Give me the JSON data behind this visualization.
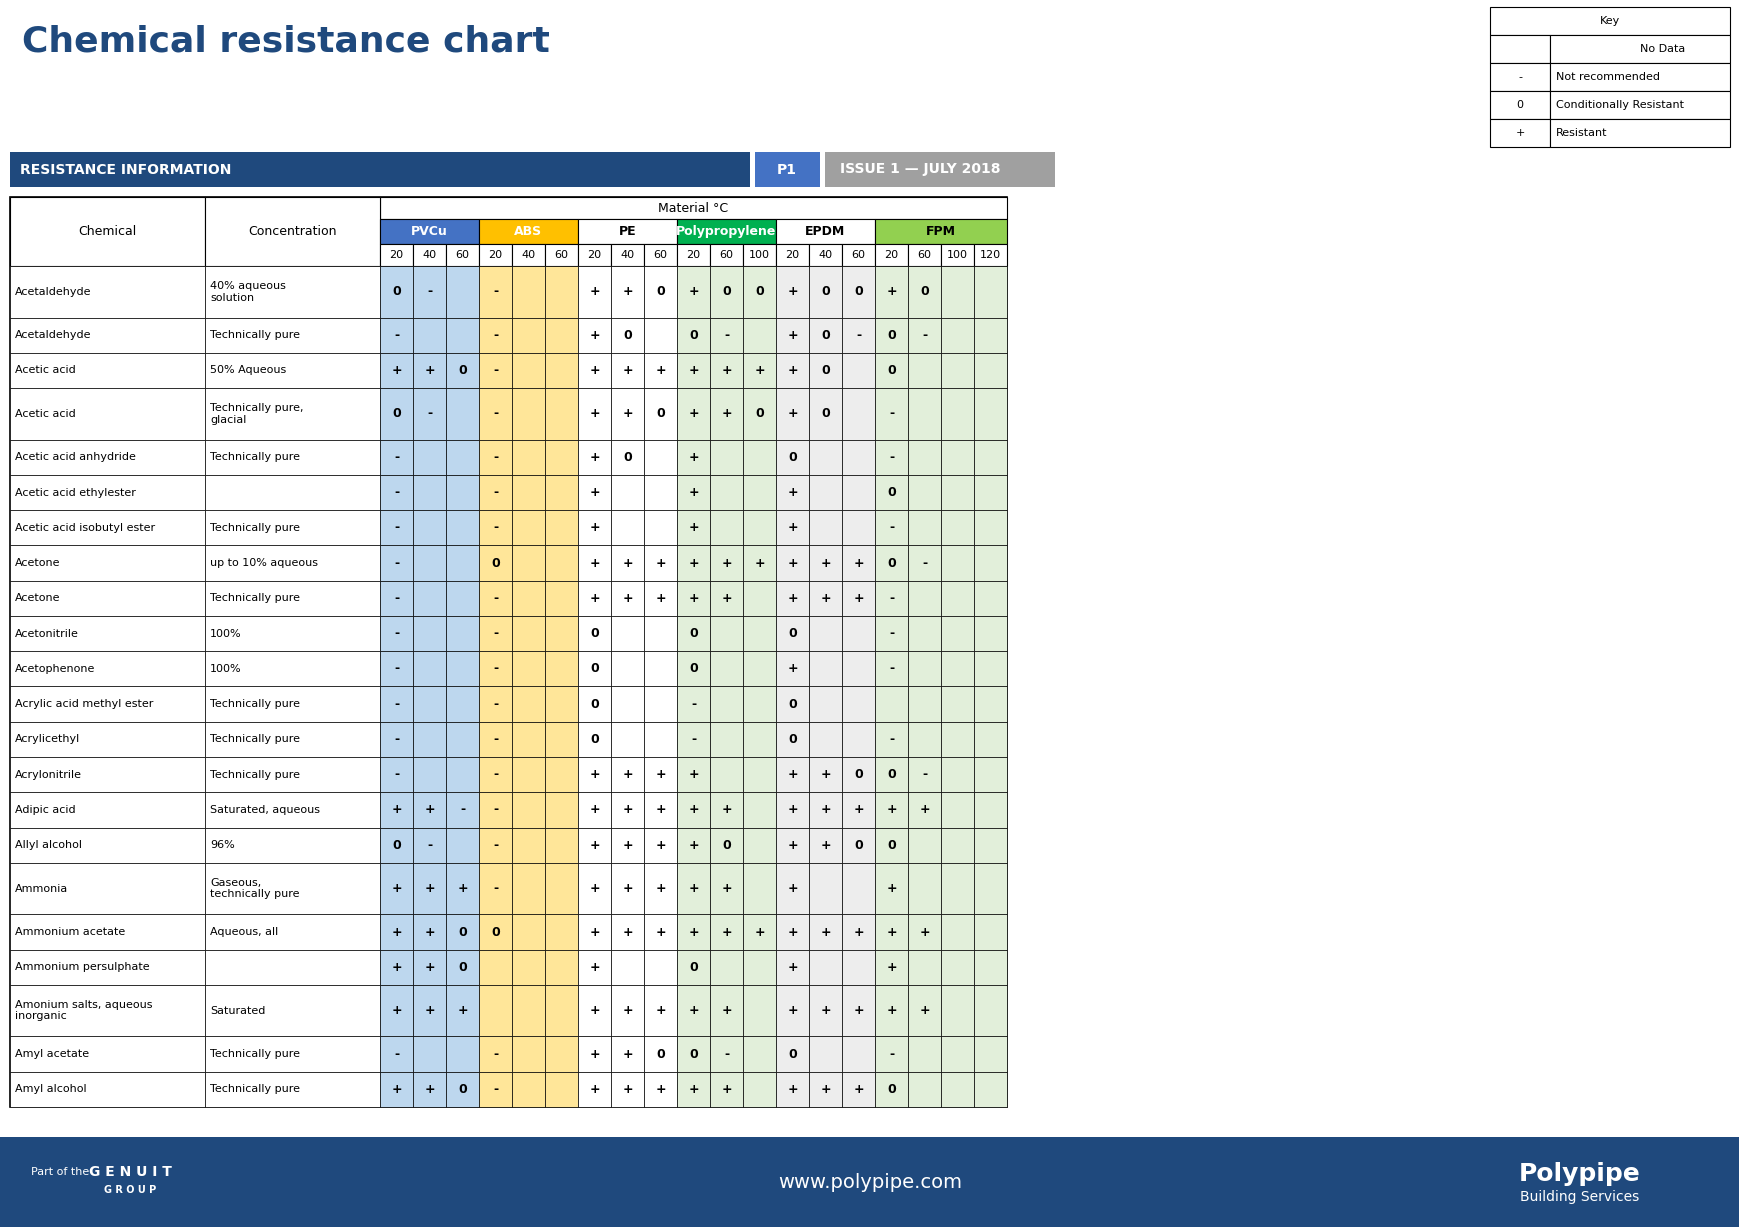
{
  "title": "Chemical resistance chart",
  "header_bar_text": "RESISTANCE INFORMATION",
  "header_p1": "P1",
  "header_issue": "ISSUE 1 — JULY 2018",
  "material_header": "Material °C",
  "materials": [
    "PVCu",
    "ABS",
    "PE",
    "Polypropylene",
    "EPDM",
    "FPM"
  ],
  "material_colors": [
    "#4472C4",
    "#FFC000",
    "#FFFFFF",
    "#00B050",
    "#FFFFFF",
    "#92D050"
  ],
  "material_text_colors": [
    "#FFFFFF",
    "#FFFFFF",
    "#000000",
    "#FFFFFF",
    "#000000",
    "#000000"
  ],
  "sub_cols": {
    "PVCu": [
      "20",
      "40",
      "60"
    ],
    "ABS": [
      "20",
      "40",
      "60"
    ],
    "PE": [
      "20",
      "40",
      "60"
    ],
    "Polypropylene": [
      "20",
      "60",
      "100"
    ],
    "EPDM": [
      "20",
      "40",
      "60"
    ],
    "FPM": [
      "20",
      "60",
      "100",
      "120"
    ]
  },
  "col_bg_colors": {
    "PVCu": "#BDD7EE",
    "ABS": "#FFE699",
    "PE": "#FFFFFF",
    "Polypropylene": "#E2EFDA",
    "EPDM": "#EDEDED",
    "FPM": "#E2EFDA"
  },
  "key": {
    "title": "Key",
    "rows": [
      [
        "",
        "No Data"
      ],
      [
        "-",
        "Not recommended"
      ],
      [
        "0",
        "Conditionally Resistant"
      ],
      [
        "+",
        "Resistant"
      ]
    ]
  },
  "chemicals": [
    {
      "name": "Acetaldehyde",
      "concentration": "40% aqueous\nsolution",
      "data": {
        "PVCu": [
          "0",
          "-",
          ""
        ],
        "ABS": [
          "-",
          "",
          ""
        ],
        "PE": [
          "+",
          "+",
          "0"
        ],
        "Polypropylene": [
          "+",
          "0",
          "0"
        ],
        "EPDM": [
          "+",
          "0",
          "0"
        ],
        "FPM": [
          "+",
          "0",
          "",
          ""
        ]
      }
    },
    {
      "name": "Acetaldehyde",
      "concentration": "Technically pure",
      "data": {
        "PVCu": [
          "-",
          "",
          ""
        ],
        "ABS": [
          "-",
          "",
          ""
        ],
        "PE": [
          "+",
          "0",
          ""
        ],
        "Polypropylene": [
          "0",
          "-",
          ""
        ],
        "EPDM": [
          "+",
          "0",
          "-"
        ],
        "FPM": [
          "0",
          "-",
          "",
          ""
        ]
      }
    },
    {
      "name": "Acetic acid",
      "concentration": "50% Aqueous",
      "data": {
        "PVCu": [
          "+",
          "+",
          "0"
        ],
        "ABS": [
          "-",
          "",
          ""
        ],
        "PE": [
          "+",
          "+",
          "+"
        ],
        "Polypropylene": [
          "+",
          "+",
          "+"
        ],
        "EPDM": [
          "+",
          "0",
          ""
        ],
        "FPM": [
          "0",
          "",
          "",
          ""
        ]
      }
    },
    {
      "name": "Acetic acid",
      "concentration": "Technically pure,\nglacial",
      "data": {
        "PVCu": [
          "0",
          "-",
          ""
        ],
        "ABS": [
          "-",
          "",
          ""
        ],
        "PE": [
          "+",
          "+",
          "0"
        ],
        "Polypropylene": [
          "+",
          "+",
          "0"
        ],
        "EPDM": [
          "+",
          "0",
          ""
        ],
        "FPM": [
          "-",
          "",
          "",
          ""
        ]
      }
    },
    {
      "name": "Acetic acid anhydride",
      "concentration": "Technically pure",
      "data": {
        "PVCu": [
          "-",
          "",
          ""
        ],
        "ABS": [
          "-",
          "",
          ""
        ],
        "PE": [
          "+",
          "0",
          ""
        ],
        "Polypropylene": [
          "+",
          "",
          ""
        ],
        "EPDM": [
          "0",
          "",
          ""
        ],
        "FPM": [
          "-",
          "",
          "",
          ""
        ]
      }
    },
    {
      "name": "Acetic acid ethylester",
      "concentration": "",
      "data": {
        "PVCu": [
          "-",
          "",
          ""
        ],
        "ABS": [
          "-",
          "",
          ""
        ],
        "PE": [
          "+",
          "",
          ""
        ],
        "Polypropylene": [
          "+",
          "",
          ""
        ],
        "EPDM": [
          "+",
          "",
          ""
        ],
        "FPM": [
          "0",
          "",
          "",
          ""
        ]
      }
    },
    {
      "name": "Acetic acid isobutyl ester",
      "concentration": "Technically pure",
      "data": {
        "PVCu": [
          "-",
          "",
          ""
        ],
        "ABS": [
          "-",
          "",
          ""
        ],
        "PE": [
          "+",
          "",
          ""
        ],
        "Polypropylene": [
          "+",
          "",
          ""
        ],
        "EPDM": [
          "+",
          "",
          ""
        ],
        "FPM": [
          "-",
          "",
          "",
          ""
        ]
      }
    },
    {
      "name": "Acetone",
      "concentration": "up to 10% aqueous",
      "data": {
        "PVCu": [
          "-",
          "",
          ""
        ],
        "ABS": [
          "0",
          "",
          ""
        ],
        "PE": [
          "+",
          "+",
          "+"
        ],
        "Polypropylene": [
          "+",
          "+",
          "+"
        ],
        "EPDM": [
          "+",
          "+",
          "+"
        ],
        "FPM": [
          "0",
          "-",
          "",
          ""
        ]
      }
    },
    {
      "name": "Acetone",
      "concentration": "Technically pure",
      "data": {
        "PVCu": [
          "-",
          "",
          ""
        ],
        "ABS": [
          "-",
          "",
          ""
        ],
        "PE": [
          "+",
          "+",
          "+"
        ],
        "Polypropylene": [
          "+",
          "+",
          ""
        ],
        "EPDM": [
          "+",
          "+",
          "+"
        ],
        "FPM": [
          "-",
          "",
          "",
          ""
        ]
      }
    },
    {
      "name": "Acetonitrile",
      "concentration": "100%",
      "data": {
        "PVCu": [
          "-",
          "",
          ""
        ],
        "ABS": [
          "-",
          "",
          ""
        ],
        "PE": [
          "0",
          "",
          ""
        ],
        "Polypropylene": [
          "0",
          "",
          ""
        ],
        "EPDM": [
          "0",
          "",
          ""
        ],
        "FPM": [
          "-",
          "",
          "",
          ""
        ]
      }
    },
    {
      "name": "Acetophenone",
      "concentration": "100%",
      "data": {
        "PVCu": [
          "-",
          "",
          ""
        ],
        "ABS": [
          "-",
          "",
          ""
        ],
        "PE": [
          "0",
          "",
          ""
        ],
        "Polypropylene": [
          "0",
          "",
          ""
        ],
        "EPDM": [
          "+",
          "",
          ""
        ],
        "FPM": [
          "-",
          "",
          "",
          ""
        ]
      }
    },
    {
      "name": "Acrylic acid methyl ester",
      "concentration": "Technically pure",
      "data": {
        "PVCu": [
          "-",
          "",
          ""
        ],
        "ABS": [
          "-",
          "",
          ""
        ],
        "PE": [
          "0",
          "",
          ""
        ],
        "Polypropylene": [
          "-",
          "",
          ""
        ],
        "EPDM": [
          "0",
          "",
          ""
        ],
        "FPM": [
          "",
          "",
          "",
          ""
        ]
      }
    },
    {
      "name": "Acrylicethyl",
      "concentration": "Technically pure",
      "data": {
        "PVCu": [
          "-",
          "",
          ""
        ],
        "ABS": [
          "-",
          "",
          ""
        ],
        "PE": [
          "0",
          "",
          ""
        ],
        "Polypropylene": [
          "-",
          "",
          ""
        ],
        "EPDM": [
          "0",
          "",
          ""
        ],
        "FPM": [
          "-",
          "",
          "",
          ""
        ]
      }
    },
    {
      "name": "Acrylonitrile",
      "concentration": "Technically pure",
      "data": {
        "PVCu": [
          "-",
          "",
          ""
        ],
        "ABS": [
          "-",
          "",
          ""
        ],
        "PE": [
          "+",
          "+",
          "+"
        ],
        "Polypropylene": [
          "+",
          "",
          ""
        ],
        "EPDM": [
          "+",
          "+",
          "0"
        ],
        "FPM": [
          "0",
          "-",
          "",
          ""
        ]
      }
    },
    {
      "name": "Adipic acid",
      "concentration": "Saturated, aqueous",
      "data": {
        "PVCu": [
          "+",
          "+",
          "-"
        ],
        "ABS": [
          "-",
          "",
          ""
        ],
        "PE": [
          "+",
          "+",
          "+"
        ],
        "Polypropylene": [
          "+",
          "+",
          ""
        ],
        "EPDM": [
          "+",
          "+",
          "+"
        ],
        "FPM": [
          "+",
          "+",
          "",
          ""
        ]
      }
    },
    {
      "name": "Allyl alcohol",
      "concentration": "96%",
      "data": {
        "PVCu": [
          "0",
          "-",
          ""
        ],
        "ABS": [
          "-",
          "",
          ""
        ],
        "PE": [
          "+",
          "+",
          "+"
        ],
        "Polypropylene": [
          "+",
          "0",
          ""
        ],
        "EPDM": [
          "+",
          "+",
          "0"
        ],
        "FPM": [
          "0",
          "",
          "",
          ""
        ]
      }
    },
    {
      "name": "Ammonia",
      "concentration": "Gaseous,\ntechnically pure",
      "data": {
        "PVCu": [
          "+",
          "+",
          "+"
        ],
        "ABS": [
          "-",
          "",
          ""
        ],
        "PE": [
          "+",
          "+",
          "+"
        ],
        "Polypropylene": [
          "+",
          "+",
          ""
        ],
        "EPDM": [
          "+",
          "",
          ""
        ],
        "FPM": [
          "+",
          "",
          "",
          ""
        ]
      }
    },
    {
      "name": "Ammonium acetate",
      "concentration": "Aqueous, all",
      "data": {
        "PVCu": [
          "+",
          "+",
          "0"
        ],
        "ABS": [
          "0",
          "",
          ""
        ],
        "PE": [
          "+",
          "+",
          "+"
        ],
        "Polypropylene": [
          "+",
          "+",
          "+"
        ],
        "EPDM": [
          "+",
          "+",
          "+"
        ],
        "FPM": [
          "+",
          "+",
          "",
          ""
        ]
      }
    },
    {
      "name": "Ammonium persulphate",
      "concentration": "",
      "data": {
        "PVCu": [
          "+",
          "+",
          "0"
        ],
        "ABS": [
          "",
          "",
          ""
        ],
        "PE": [
          "+",
          "",
          ""
        ],
        "Polypropylene": [
          "0",
          "",
          ""
        ],
        "EPDM": [
          "+",
          "",
          ""
        ],
        "FPM": [
          "+",
          "",
          "",
          ""
        ]
      }
    },
    {
      "name": "Amonium salts, aqueous\ninorganic",
      "concentration": "Saturated",
      "data": {
        "PVCu": [
          "+",
          "+",
          "+"
        ],
        "ABS": [
          "",
          "",
          ""
        ],
        "PE": [
          "+",
          "+",
          "+"
        ],
        "Polypropylene": [
          "+",
          "+",
          ""
        ],
        "EPDM": [
          "+",
          "+",
          "+"
        ],
        "FPM": [
          "+",
          "+",
          "",
          ""
        ]
      }
    },
    {
      "name": "Amyl acetate",
      "concentration": "Technically pure",
      "data": {
        "PVCu": [
          "-",
          "",
          ""
        ],
        "ABS": [
          "-",
          "",
          ""
        ],
        "PE": [
          "+",
          "+",
          "0"
        ],
        "Polypropylene": [
          "0",
          "-",
          ""
        ],
        "EPDM": [
          "0",
          "",
          ""
        ],
        "FPM": [
          "-",
          "",
          "",
          ""
        ]
      }
    },
    {
      "name": "Amyl alcohol",
      "concentration": "Technically pure",
      "data": {
        "PVCu": [
          "+",
          "+",
          "0"
        ],
        "ABS": [
          "-",
          "",
          ""
        ],
        "PE": [
          "+",
          "+",
          "+"
        ],
        "Polypropylene": [
          "+",
          "+",
          ""
        ],
        "EPDM": [
          "+",
          "+",
          "+"
        ],
        "FPM": [
          "0",
          "",
          "",
          ""
        ]
      }
    }
  ],
  "footer_text": "www.polypipe.com",
  "footer_bg": "#1F497D",
  "title_color": "#1F497D",
  "header_bar_color": "#1F497D",
  "header_p1_color": "#4472C4",
  "header_issue_color": "#808080"
}
